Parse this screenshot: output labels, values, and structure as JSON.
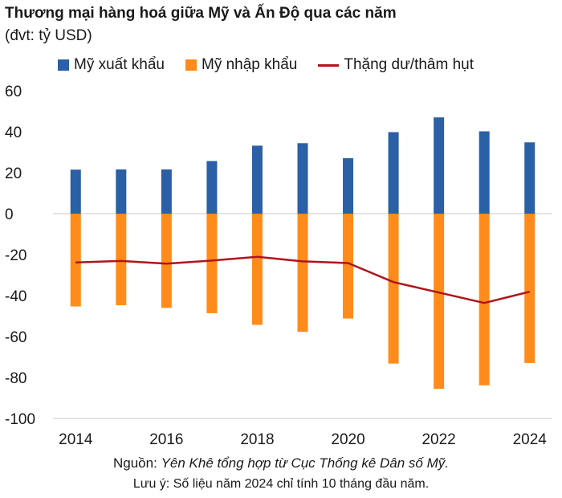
{
  "title": "Thương mại hàng hoá giữa Mỹ và Ấn Độ qua các năm",
  "subtitle": "(đvt: tỷ USD)",
  "colors": {
    "exports": "#2b5fa6",
    "imports": "#ff8c1a",
    "balance": "#b0141c"
  },
  "source_label": "Nguồn:",
  "source_text": "Yên Khê tổng hợp từ Cục Thống kê Dân số Mỹ.",
  "note": "Lưu ý: Số liệu năm 2024 chỉ tính 10 tháng đầu năm.",
  "chart_data": {
    "type": "bar",
    "categories": [
      2014,
      2015,
      2016,
      2017,
      2018,
      2019,
      2020,
      2021,
      2022,
      2023,
      2024
    ],
    "x_tick_labels": [
      "2014",
      "2016",
      "2018",
      "2020",
      "2022",
      "2024"
    ],
    "y_tick_labels": [
      "60",
      "40",
      "20",
      "0",
      "-20",
      "-40",
      "-60",
      "-80",
      "-100"
    ],
    "ylim": [
      -100,
      60
    ],
    "legend_position": "top",
    "series": [
      {
        "name": "Mỹ xuất khẩu",
        "type": "bar",
        "values": [
          21.5,
          21.6,
          21.6,
          25.7,
          33.2,
          34.4,
          27.1,
          39.8,
          47.0,
          40.2,
          34.8
        ]
      },
      {
        "name": "Mỹ nhập khẩu",
        "type": "bar",
        "values": [
          -45.3,
          -44.7,
          -46.0,
          -48.6,
          -54.3,
          -57.7,
          -51.2,
          -73.2,
          -85.5,
          -83.8,
          -72.9
        ]
      },
      {
        "name": "Thặng dư/thâm hụt",
        "type": "line",
        "values": [
          -23.8,
          -23.1,
          -24.4,
          -22.9,
          -21.1,
          -23.3,
          -24.1,
          -33.4,
          -38.5,
          -43.6,
          -38.1
        ]
      }
    ]
  }
}
